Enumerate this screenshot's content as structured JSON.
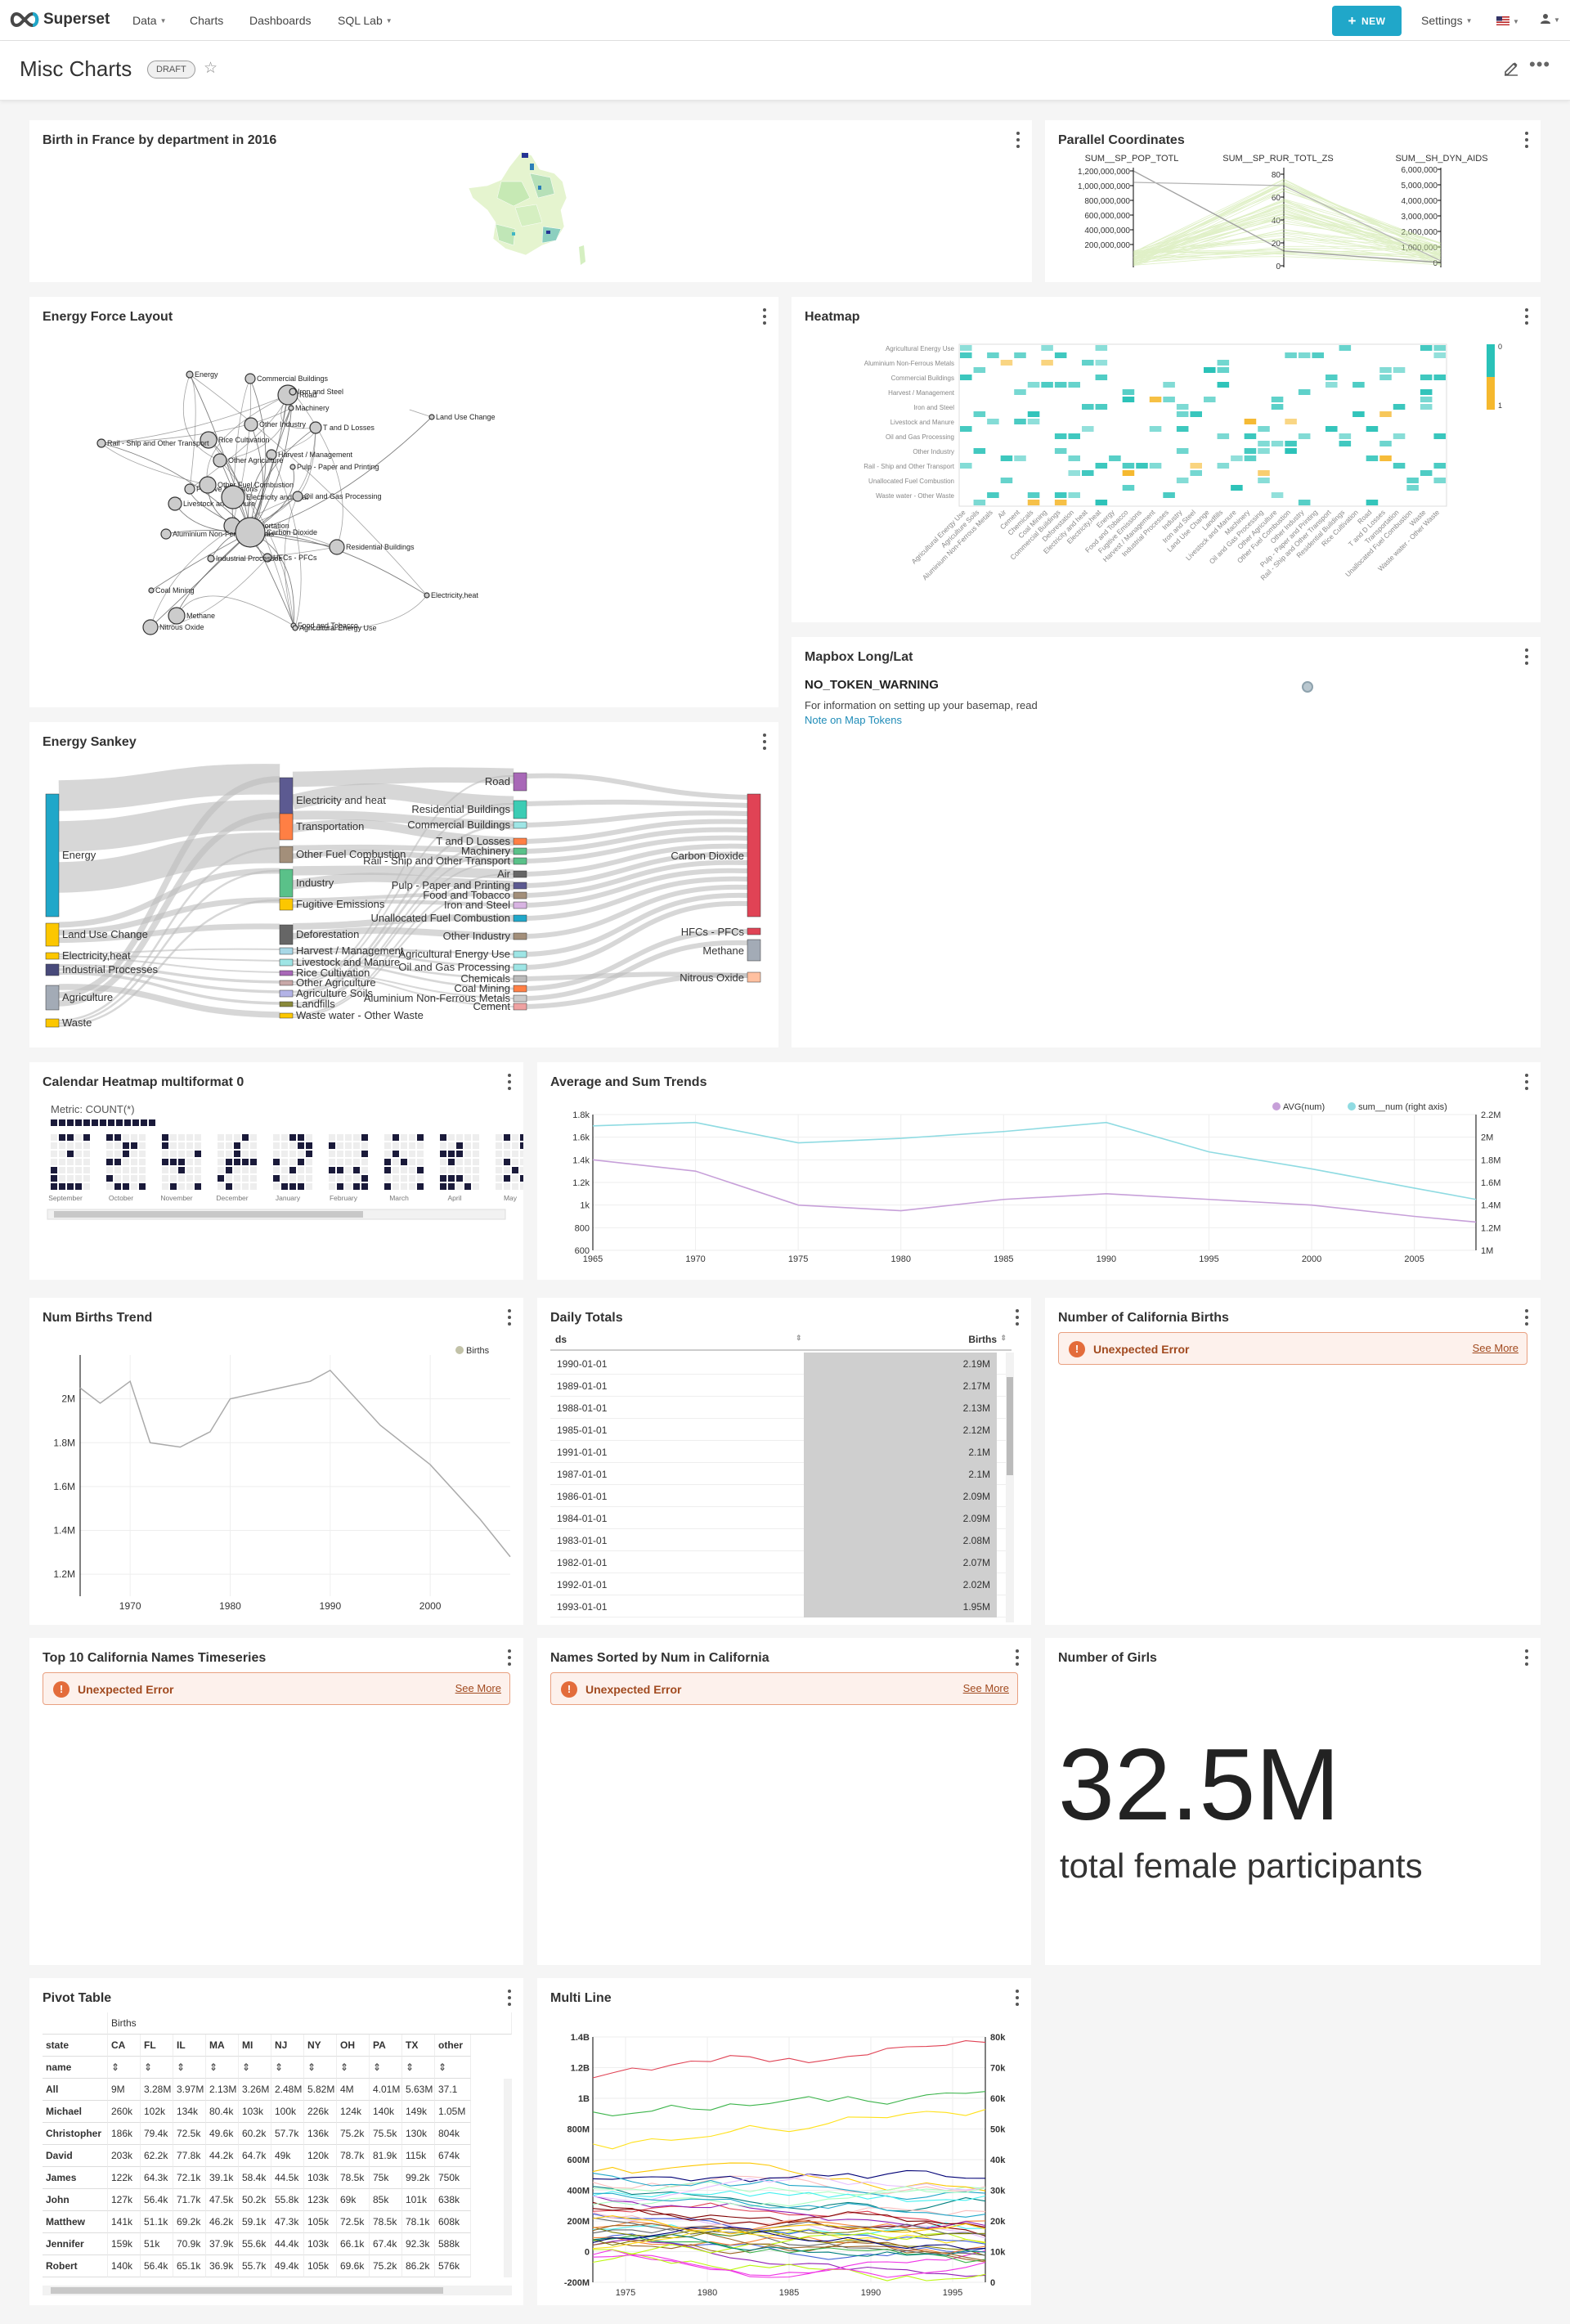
{
  "nav": {
    "brand": "Superset",
    "menu": [
      "Data",
      "Charts",
      "Dashboards",
      "SQL Lab"
    ],
    "new_button": "NEW",
    "settings": "Settings"
  },
  "dashboard": {
    "title": "Misc Charts",
    "status": "DRAFT"
  },
  "cards": {
    "france": "Birth in France by department in 2016",
    "parallel": "Parallel Coordinates",
    "force": "Energy Force Layout",
    "heatmap": "Heatmap",
    "mapbox": "Mapbox Long/Lat",
    "sankey": "Energy Sankey",
    "calendar": "Calendar Heatmap multiformat 0",
    "avgsum": "Average and Sum Trends",
    "numbirths": "Num Births Trend",
    "daily": "Daily Totals",
    "calbirths": "Number of California Births",
    "top10": "Top 10 California Names Timeseries",
    "sorted": "Names Sorted by Num in California",
    "girls": "Number of Girls",
    "pivot": "Pivot Table",
    "multiline": "Multi Line"
  },
  "error": {
    "text": "Unexpected Error",
    "link": "See More"
  },
  "mapbox": {
    "warning": "NO_TOKEN_WARNING",
    "info": "For information on setting up your basemap, read",
    "link": "Note on Map Tokens"
  },
  "big_number": {
    "value": "32.5M",
    "subheader": "total female participants"
  },
  "parallel": {
    "axes": [
      "SUM__SP_POP_TOTL",
      "SUM__SP_RUR_TOTL_ZS",
      "SUM__SH_DYN_AIDS"
    ],
    "axis1_ticks": [
      "1,200,000,000",
      "1,000,000,000",
      "800,000,000",
      "600,000,000",
      "400,000,000",
      "200,000,000"
    ],
    "axis2_ticks": [
      "80",
      "60",
      "40",
      "20",
      "0"
    ],
    "axis3_ticks": [
      "6,000,000",
      "5,000,000",
      "4,000,000",
      "3,000,000",
      "2,000,000",
      "1,000,000",
      "0"
    ]
  },
  "force_nodes": [
    "Energy",
    "Commercial Buildings",
    "Road",
    "Iron and Steel",
    "Machinery",
    "Other Industry",
    "T and D Losses",
    "Land Use Change",
    "Rice Cultivation",
    "Rail - Ship and Other Transport",
    "Harvest / Management",
    "Other Agriculture",
    "Pulp - Paper and Printing",
    "Fugitive Emissions",
    "Other Fuel Combustion",
    "Livestock and Manure",
    "Electricity and heat",
    "Oil and Gas Processing",
    "Transportation",
    "Aluminium Non-Ferrous Metals",
    "Carbon Dioxide",
    "Residential Buildings",
    "HFCs - PFCs",
    "Industrial Processes",
    "Coal Mining",
    "Electricity,heat",
    "Methane",
    "Nitrous Oxide",
    "Food and Tobacco",
    "Agricultural Energy Use"
  ],
  "heatmap": {
    "x_labels": [
      "Agricultural Energy Use",
      "Agriculture Soils",
      "Aluminium Non-Ferrous Metals",
      "Air",
      "Cement",
      "Chemicals",
      "Coal Mining",
      "Commercial Buildings",
      "Deforestation",
      "Electricity and heat",
      "Electricity,heat",
      "Energy",
      "Food and Tobacco",
      "Fugitive Emissions",
      "Harvest / Management",
      "Industrial Processes",
      "Industry",
      "Iron and Steel",
      "Land Use Change",
      "Landfills",
      "Livestock and Manure",
      "Machinery",
      "Oil and Gas Processing",
      "Other Agriculture",
      "Other Fuel Combustion",
      "Other Industry",
      "Pulp - Paper and Printing",
      "Rail - Ship and Other Transport",
      "Residential Buildings",
      "Rice Cultivation",
      "Road",
      "T and D Losses",
      "Transportation",
      "Unallocated Fuel Combustion",
      "Waste",
      "Waste water - Other Waste"
    ],
    "y_labels": [
      "Agricultural Energy Use",
      "Aluminium Non-Ferrous Metals",
      "Commercial Buildings",
      "Harvest / Management",
      "Iron and Steel",
      "Livestock and Manure",
      "Oil and Gas Processing",
      "Other Industry",
      "Rail - Ship and Other Transport",
      "Unallocated Fuel Combustion",
      "Waste water - Other Waste"
    ],
    "legend": [
      "0",
      "1"
    ]
  },
  "sankey": {
    "left": [
      "Energy",
      "Land Use Change",
      "Electricity,heat",
      "Industrial Processes",
      "Agriculture",
      "Waste"
    ],
    "middle": [
      "Electricity and heat",
      "Transportation",
      "Other Fuel Combustion",
      "Industry",
      "Fugitive Emissions",
      "Deforestation",
      "Harvest / Management",
      "Livestock and Manure",
      "Rice Cultivation",
      "Other Agriculture",
      "Agriculture Soils",
      "Landfills",
      "Waste water - Other Waste"
    ],
    "right1": [
      "Road",
      "Residential Buildings",
      "Commercial Buildings",
      "T and D Losses",
      "Machinery",
      "Rail - Ship and Other Transport",
      "Air",
      "Pulp - Paper and Printing",
      "Food and Tobacco",
      "Iron and Steel",
      "Unallocated Fuel Combustion",
      "Other Industry",
      "Agricultural Energy Use",
      "Oil and Gas Processing",
      "Chemicals",
      "Coal Mining",
      "Aluminium Non-Ferrous Metals",
      "Cement"
    ],
    "right2": [
      "Carbon Dioxide",
      "HFCs - PFCs",
      "Methane",
      "Nitrous Oxide"
    ]
  },
  "calendar": {
    "metric": "Metric: COUNT(*)",
    "months": [
      "September",
      "October",
      "November",
      "December",
      "January",
      "February",
      "March",
      "April",
      "May"
    ]
  },
  "chart_data": [
    {
      "type": "line",
      "name_ref": "Average and Sum Trends",
      "x": [
        1965,
        1970,
        1975,
        1980,
        1985,
        1990,
        1995,
        2000,
        2005,
        2008
      ],
      "series": [
        {
          "name": "AVG(num)",
          "values": [
            1400,
            1300,
            1000,
            950,
            1050,
            1100,
            1050,
            1000,
            900,
            850
          ],
          "color": "#c7a0d9"
        },
        {
          "name": "sum__num (right axis)",
          "values": [
            2100000,
            2130000,
            1950000,
            1990000,
            2050000,
            2130000,
            1870000,
            1720000,
            1550000,
            1450000
          ],
          "color": "#8fdbe2"
        }
      ],
      "y_ticks": [
        "600",
        "800",
        "1k",
        "1.2k",
        "1.4k",
        "1.6k",
        "1.8k"
      ],
      "y2_ticks": [
        "1M",
        "1.2M",
        "1.4M",
        "1.6M",
        "1.8M",
        "2M",
        "2.2M"
      ],
      "x_ticks": [
        "1965",
        "1970",
        "1975",
        "1980",
        "1985",
        "1990",
        "1995",
        "2000",
        "2005"
      ]
    },
    {
      "type": "line",
      "name_ref": "Num Births Trend",
      "x": [
        1965,
        1967,
        1970,
        1972,
        1975,
        1978,
        1980,
        1985,
        1988,
        1990,
        1995,
        2000,
        2005,
        2008
      ],
      "series": [
        {
          "name": "Births",
          "values": [
            2050000,
            1980000,
            2080000,
            1800000,
            1780000,
            1850000,
            2000000,
            2050000,
            2080000,
            2130000,
            1880000,
            1700000,
            1450000,
            1280000
          ]
        }
      ],
      "y_ticks": [
        "1.2M",
        "1.4M",
        "1.6M",
        "1.8M",
        "2M"
      ],
      "x_ticks": [
        "1970",
        "1980",
        "1990",
        "2000"
      ]
    }
  ],
  "daily": {
    "columns": [
      "ds",
      "Births"
    ],
    "rows": [
      [
        "1990-01-01",
        "2.19M"
      ],
      [
        "1989-01-01",
        "2.17M"
      ],
      [
        "1988-01-01",
        "2.13M"
      ],
      [
        "1985-01-01",
        "2.12M"
      ],
      [
        "1991-01-01",
        "2.1M"
      ],
      [
        "1987-01-01",
        "2.1M"
      ],
      [
        "1986-01-01",
        "2.09M"
      ],
      [
        "1984-01-01",
        "2.09M"
      ],
      [
        "1983-01-01",
        "2.08M"
      ],
      [
        "1982-01-01",
        "2.07M"
      ],
      [
        "1992-01-01",
        "2.02M"
      ],
      [
        "1993-01-01",
        "1.95M"
      ]
    ]
  },
  "pivot": {
    "group": "Births",
    "header": [
      "state",
      "CA",
      "FL",
      "IL",
      "MA",
      "MI",
      "NJ",
      "NY",
      "OH",
      "PA",
      "TX",
      "other"
    ],
    "name_label": "name",
    "rows": [
      [
        "All",
        "9M",
        "3.28M",
        "3.97M",
        "2.13M",
        "3.26M",
        "2.48M",
        "5.82M",
        "4M",
        "4.01M",
        "5.63M",
        "37.1"
      ],
      [
        "Michael",
        "260k",
        "102k",
        "134k",
        "80.4k",
        "103k",
        "100k",
        "226k",
        "124k",
        "140k",
        "149k",
        "1.05M"
      ],
      [
        "Christopher",
        "186k",
        "79.4k",
        "72.5k",
        "49.6k",
        "60.2k",
        "57.7k",
        "136k",
        "75.2k",
        "75.5k",
        "130k",
        "804k"
      ],
      [
        "David",
        "203k",
        "62.2k",
        "77.8k",
        "44.2k",
        "64.7k",
        "49k",
        "120k",
        "78.7k",
        "81.9k",
        "115k",
        "674k"
      ],
      [
        "James",
        "122k",
        "64.3k",
        "72.1k",
        "39.1k",
        "58.4k",
        "44.5k",
        "103k",
        "78.5k",
        "75k",
        "99.2k",
        "750k"
      ],
      [
        "John",
        "127k",
        "56.4k",
        "71.7k",
        "47.5k",
        "50.2k",
        "55.8k",
        "123k",
        "69k",
        "85k",
        "101k",
        "638k"
      ],
      [
        "Matthew",
        "141k",
        "51.1k",
        "69.2k",
        "46.2k",
        "59.1k",
        "47.3k",
        "105k",
        "72.5k",
        "78.5k",
        "78.1k",
        "608k"
      ],
      [
        "Jennifer",
        "159k",
        "51k",
        "70.9k",
        "37.9k",
        "55.6k",
        "44.4k",
        "103k",
        "66.1k",
        "67.4k",
        "92.3k",
        "588k"
      ],
      [
        "Robert",
        "140k",
        "56.4k",
        "65.1k",
        "36.9k",
        "55.7k",
        "49.4k",
        "105k",
        "69.6k",
        "75.2k",
        "86.2k",
        "576k"
      ]
    ]
  },
  "multiline": {
    "y_ticks": [
      "-200M",
      "0",
      "200M",
      "400M",
      "600M",
      "800M",
      "1B",
      "1.2B",
      "1.4B"
    ],
    "y2_ticks": [
      "0",
      "10k",
      "20k",
      "30k",
      "40k",
      "50k",
      "60k",
      "70k",
      "80k"
    ],
    "x_ticks": [
      "1975",
      "1980",
      "1985",
      "1990",
      "1995"
    ]
  },
  "colors": {
    "accent": "#20a7c9",
    "teal": "#2ac2b8",
    "orange": "#f5a623"
  }
}
